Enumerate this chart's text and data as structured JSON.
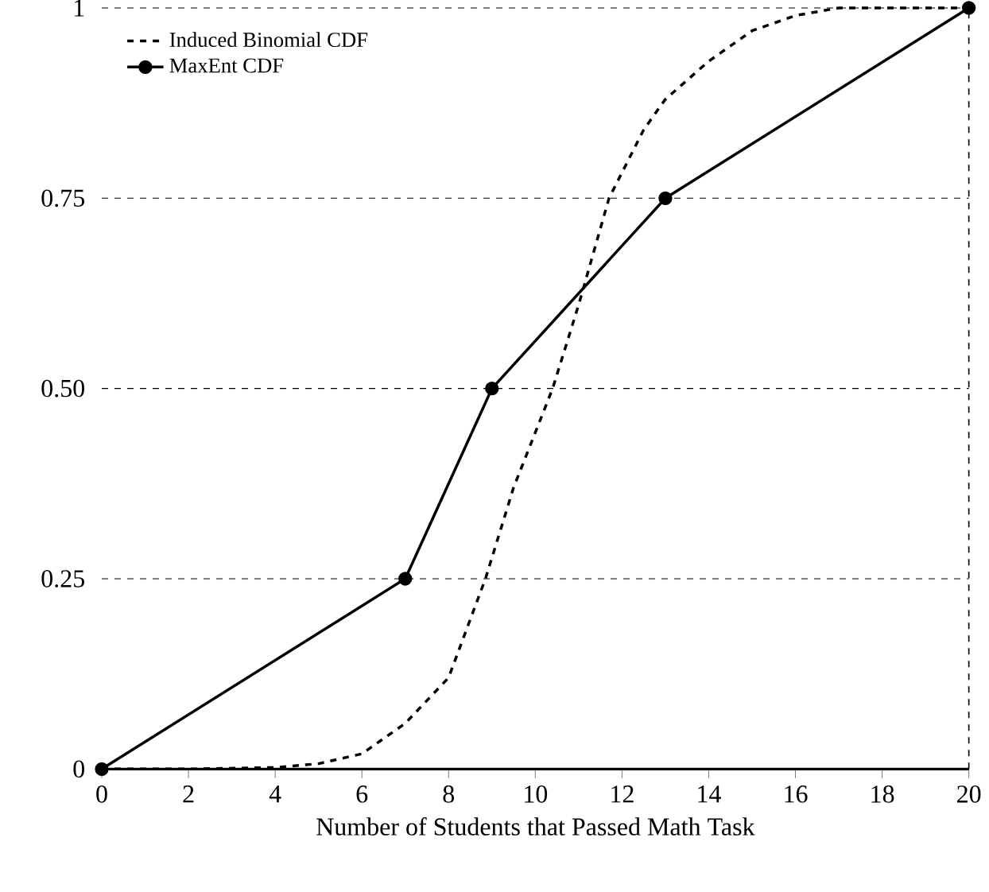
{
  "chart_data": {
    "type": "line",
    "xlabel": "Number of Students that Passed Math Task",
    "xlim": [
      0,
      20
    ],
    "xticks": [
      0,
      2,
      4,
      6,
      8,
      10,
      12,
      14,
      16,
      18,
      20
    ],
    "ylim": [
      0,
      1
    ],
    "yticks": [
      0,
      0.25,
      {
        "value": 0.5,
        "label": "0.50"
      },
      0.75,
      1
    ],
    "grid": "y",
    "legend": "top left",
    "ref_lines": [
      {
        "axis": "x",
        "value": 20,
        "line_style": "dashed"
      }
    ],
    "series": [
      {
        "name": "Induced Binomial CDF",
        "color": "#000000",
        "line_style": "dashed",
        "marker": "none",
        "x": [
          0,
          2,
          4,
          5,
          6,
          7,
          8,
          8.85,
          9.5,
          10.4,
          11,
          11.7,
          12.5,
          13,
          14,
          15,
          16,
          17,
          18,
          20
        ],
        "values": [
          0,
          0,
          0.002,
          0.007,
          0.02,
          0.06,
          0.12,
          0.25,
          0.37,
          0.5,
          0.61,
          0.75,
          0.84,
          0.88,
          0.93,
          0.97,
          0.99,
          1,
          1,
          1
        ]
      },
      {
        "name": "MaxEnt CDF",
        "color": "#000000",
        "line_style": "solid",
        "marker": "circle",
        "x": [
          0,
          7,
          9,
          13,
          20
        ],
        "values": [
          0,
          0.25,
          0.5,
          0.75,
          1
        ]
      }
    ]
  }
}
